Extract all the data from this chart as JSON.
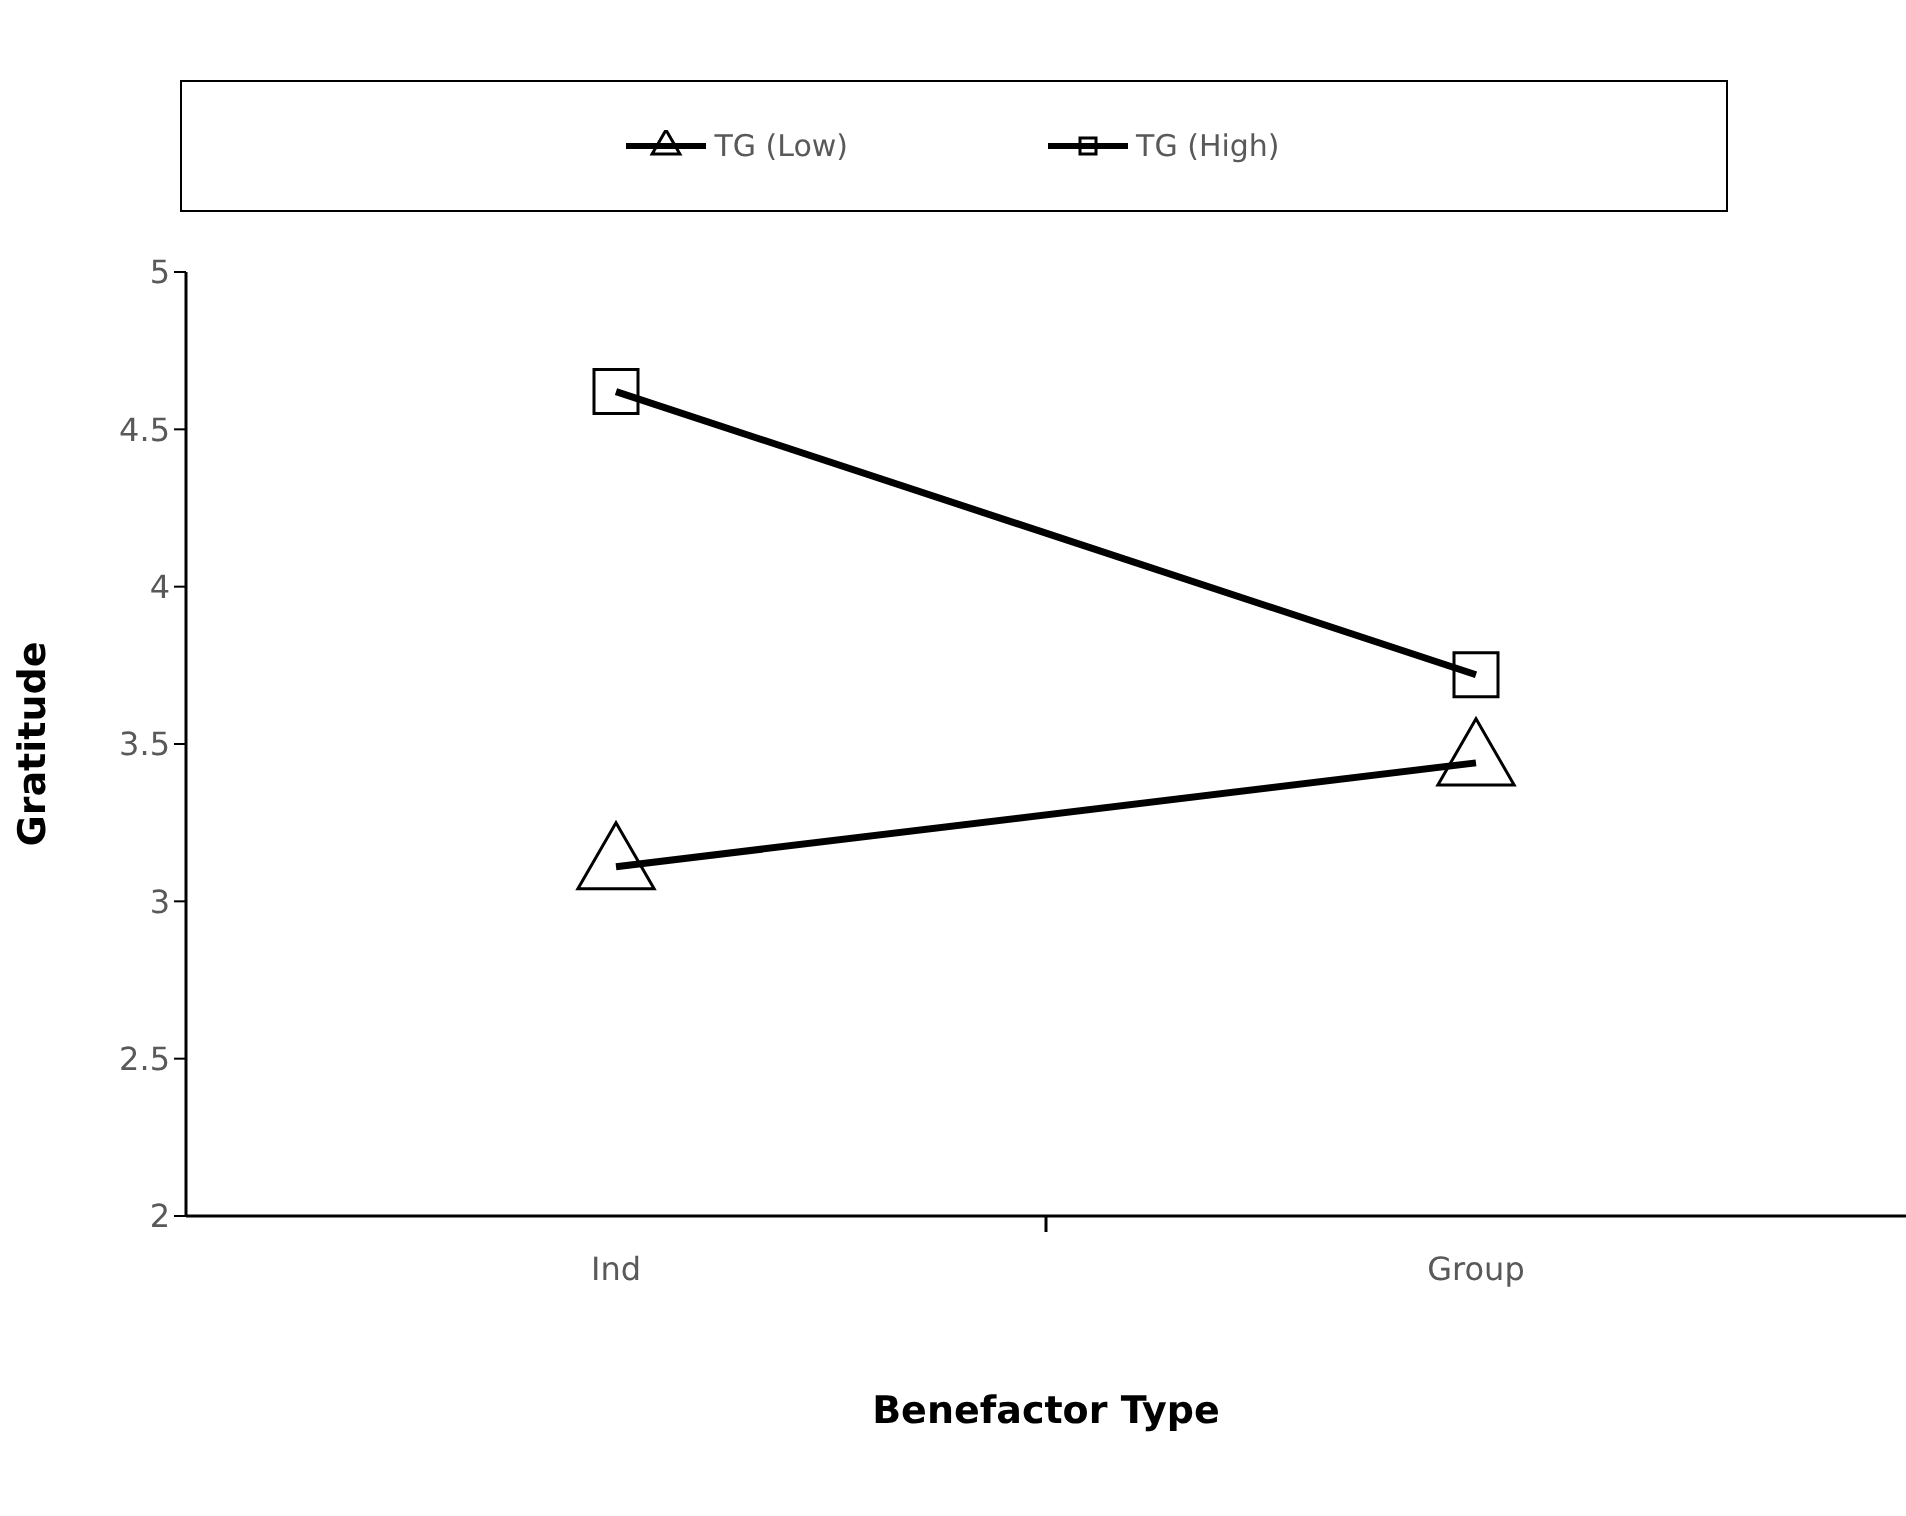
{
  "chart_data": {
    "type": "line",
    "xlabel": "Benefactor Type",
    "ylabel": "Gratitude",
    "categories": [
      "Ind",
      "Group"
    ],
    "series": [
      {
        "name": "TG (Low)",
        "color": "#000000",
        "marker": "triangle",
        "values": [
          3.11,
          3.44
        ]
      },
      {
        "name": "TG (High)",
        "color": "#000000",
        "marker": "square",
        "values": [
          4.62,
          3.72
        ]
      }
    ],
    "ylim": [
      2,
      5
    ],
    "yticks": [
      2,
      2.5,
      3,
      3.5,
      4,
      4.5,
      5
    ],
    "grid": false,
    "legend": "top",
    "line_style": "solid"
  }
}
